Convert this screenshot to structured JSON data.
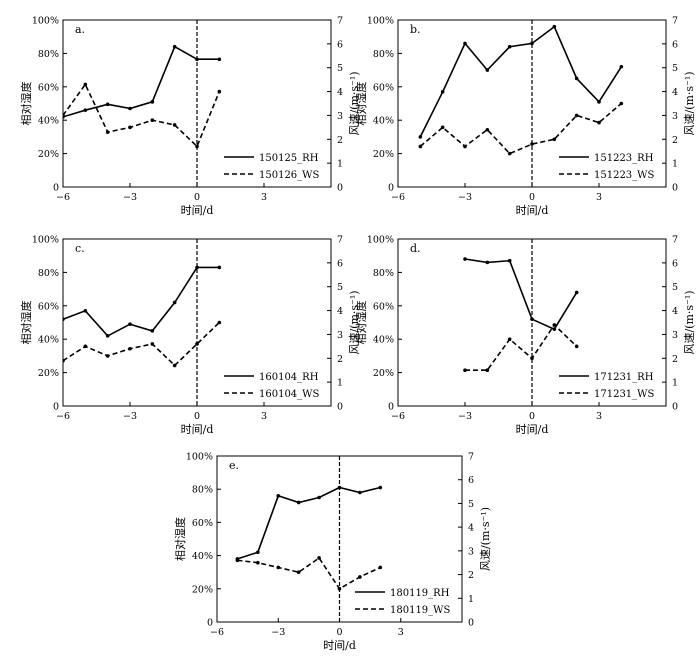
{
  "chart_data": [
    {
      "type": "line",
      "panel_label": "a.",
      "xlabel": "时间/d",
      "ylabel_left": "相对湿度",
      "ylabel_right": "风速/(m·s⁻¹)",
      "xlim": [
        -6,
        6
      ],
      "ylim_left": [
        0,
        100
      ],
      "ylim_right": [
        0,
        7
      ],
      "xticks": [
        "−6",
        "−3",
        "0",
        "3"
      ],
      "yticks_left": [
        "0",
        "20%",
        "40%",
        "60%",
        "80%",
        "100%"
      ],
      "yticks_right": [
        "0",
        "1",
        "2",
        "3",
        "4",
        "5",
        "6",
        "7"
      ],
      "series": [
        {
          "name": "150125_RH",
          "axis": "left",
          "style": "solid",
          "x": [
            -6,
            -5,
            -4,
            -3,
            -2,
            -1,
            0,
            1
          ],
          "values": [
            42,
            46,
            49.5,
            47,
            51,
            84,
            76.5,
            76.5
          ]
        },
        {
          "name": "150126_WS",
          "axis": "right",
          "style": "dashed",
          "x": [
            -6,
            -5,
            -4,
            -3,
            -2,
            -1,
            0,
            1
          ],
          "values": [
            3.0,
            4.3,
            2.3,
            2.5,
            2.8,
            2.6,
            1.7,
            4.0
          ]
        }
      ]
    },
    {
      "type": "line",
      "panel_label": "b.",
      "xlabel": "时间/d",
      "ylabel_left": "相对湿度",
      "ylabel_right": "风速/(m·s⁻¹)",
      "xlim": [
        -6,
        6
      ],
      "ylim_left": [
        0,
        100
      ],
      "ylim_right": [
        0,
        7
      ],
      "xticks": [
        "−6",
        "−3",
        "0",
        "3"
      ],
      "yticks_left": [
        "0",
        "20%",
        "40%",
        "60%",
        "80%",
        "100%"
      ],
      "yticks_right": [
        "0",
        "1",
        "2",
        "3",
        "4",
        "5",
        "6",
        "7"
      ],
      "series": [
        {
          "name": "151223_RH",
          "axis": "left",
          "style": "solid",
          "x": [
            -5,
            -4,
            -3,
            -2,
            -1,
            0,
            1,
            2,
            3,
            4
          ],
          "values": [
            30,
            57,
            86,
            70,
            84,
            86,
            96,
            65,
            51,
            72
          ]
        },
        {
          "name": "151223_WS",
          "axis": "right",
          "style": "dashed",
          "x": [
            -5,
            -4,
            -3,
            -2,
            -1,
            0,
            1,
            2,
            3,
            4
          ],
          "values": [
            1.7,
            2.5,
            1.7,
            2.4,
            1.4,
            1.8,
            2.0,
            3.0,
            2.7,
            3.5
          ]
        }
      ]
    },
    {
      "type": "line",
      "panel_label": "c.",
      "xlabel": "时间/d",
      "ylabel_left": "相对湿度",
      "ylabel_right": "风速/(m·s⁻¹)",
      "xlim": [
        -6,
        6
      ],
      "ylim_left": [
        0,
        100
      ],
      "ylim_right": [
        0,
        7
      ],
      "xticks": [
        "−6",
        "−3",
        "0",
        "3"
      ],
      "yticks_left": [
        "0",
        "20%",
        "40%",
        "60%",
        "80%",
        "100%"
      ],
      "yticks_right": [
        "0",
        "1",
        "2",
        "3",
        "4",
        "5",
        "6",
        "7"
      ],
      "series": [
        {
          "name": "160104_RH",
          "axis": "left",
          "style": "solid",
          "x": [
            -6,
            -5,
            -4,
            -3,
            -2,
            -1,
            0,
            1
          ],
          "values": [
            52,
            57,
            42,
            49,
            45,
            62,
            83,
            83
          ]
        },
        {
          "name": "160104_WS",
          "axis": "right",
          "style": "dashed",
          "x": [
            -6,
            -5,
            -4,
            -3,
            -2,
            -1,
            0,
            1
          ],
          "values": [
            1.9,
            2.5,
            2.1,
            2.4,
            2.6,
            1.7,
            2.6,
            3.5
          ]
        }
      ]
    },
    {
      "type": "line",
      "panel_label": "d.",
      "xlabel": "时间/d",
      "ylabel_left": "相对湿度",
      "ylabel_right": "风速/(m·s⁻¹)",
      "xlim": [
        -6,
        6
      ],
      "ylim_left": [
        0,
        100
      ],
      "ylim_right": [
        0,
        7
      ],
      "xticks": [
        "−6",
        "−3",
        "0",
        "3"
      ],
      "yticks_left": [
        "0",
        "20%",
        "40%",
        "60%",
        "80%",
        "100%"
      ],
      "yticks_right": [
        "0",
        "1",
        "2",
        "3",
        "4",
        "5",
        "6",
        "7"
      ],
      "series": [
        {
          "name": "171231_RH",
          "axis": "left",
          "style": "solid",
          "x": [
            -3,
            -2,
            -1,
            0,
            1,
            2
          ],
          "values": [
            88,
            86,
            87,
            52,
            46,
            68
          ]
        },
        {
          "name": "171231_WS",
          "axis": "right",
          "style": "dashed",
          "x": [
            -3,
            -2,
            -1,
            0,
            1,
            2
          ],
          "values": [
            1.5,
            1.5,
            2.8,
            2.0,
            3.4,
            2.5
          ]
        }
      ]
    },
    {
      "type": "line",
      "panel_label": "e.",
      "xlabel": "时间/d",
      "ylabel_left": "相对湿度",
      "ylabel_right": "风速/(m·s⁻¹)",
      "xlim": [
        -6,
        6
      ],
      "ylim_left": [
        0,
        100
      ],
      "ylim_right": [
        0,
        7
      ],
      "xticks": [
        "−6",
        "−3",
        "0",
        "3"
      ],
      "yticks_left": [
        "0",
        "20%",
        "40%",
        "60%",
        "80%",
        "100%"
      ],
      "yticks_right": [
        "0",
        "1",
        "2",
        "3",
        "4",
        "5",
        "6",
        "7"
      ],
      "series": [
        {
          "name": "180119_RH",
          "axis": "left",
          "style": "solid",
          "x": [
            -5,
            -4,
            -3,
            -2,
            -1,
            0,
            1,
            2
          ],
          "values": [
            38,
            42,
            76,
            72,
            75,
            81,
            78,
            81
          ]
        },
        {
          "name": "180119_WS",
          "axis": "right",
          "style": "dashed",
          "x": [
            -5,
            -4,
            -3,
            -2,
            -1,
            0,
            1,
            2
          ],
          "values": [
            2.6,
            2.5,
            2.3,
            2.1,
            2.7,
            1.4,
            1.9,
            2.3
          ]
        }
      ]
    }
  ]
}
